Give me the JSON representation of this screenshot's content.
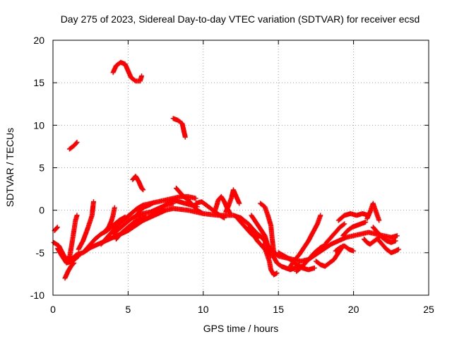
{
  "chart_data": {
    "type": "scatter",
    "title": "Day 275 of 2023, Sidereal Day-to-day VTEC variation (SDTVAR) for receiver ecsd",
    "xlabel": "GPS time / hours",
    "ylabel": "SDTVAR / TECUs",
    "xlim": [
      0,
      25
    ],
    "ylim": [
      -10,
      20
    ],
    "xticks": [
      0,
      5,
      10,
      15,
      20,
      25
    ],
    "yticks": [
      -10,
      -5,
      0,
      5,
      10,
      15,
      20
    ],
    "grid": true,
    "marker": "plus",
    "color": "#ff0000",
    "segments": [
      [
        [
          0.05,
          -3.8
        ],
        [
          0.4,
          -4.2
        ],
        [
          0.8,
          -5.6
        ],
        [
          1.2,
          -5.8
        ],
        [
          1.6,
          -5.2
        ],
        [
          2.0,
          -5.0
        ],
        [
          2.5,
          -4.4
        ],
        [
          3.0,
          -4.0
        ],
        [
          3.5,
          -3.6
        ],
        [
          4.0,
          -3.2
        ],
        [
          4.5,
          -2.8
        ],
        [
          5.0,
          -2.4
        ],
        [
          5.5,
          -1.8
        ],
        [
          6.0,
          -1.2
        ],
        [
          6.5,
          -0.8
        ],
        [
          7.0,
          -0.4
        ],
        [
          7.5,
          0.0
        ],
        [
          8.0,
          0.2
        ],
        [
          8.5,
          0.1
        ],
        [
          9.0,
          0.0
        ],
        [
          9.5,
          -0.2
        ],
        [
          10.0,
          -0.4
        ],
        [
          10.5,
          -0.5
        ],
        [
          11.0,
          -0.6
        ],
        [
          11.5,
          -0.6
        ],
        [
          12.0,
          -0.6
        ],
        [
          12.5,
          -0.9
        ],
        [
          13.0,
          -1.6
        ],
        [
          13.5,
          -2.6
        ],
        [
          14.0,
          -3.4
        ],
        [
          14.5,
          -4.6
        ],
        [
          15.0,
          -5.4
        ],
        [
          15.5,
          -5.6
        ],
        [
          16.0,
          -5.8
        ],
        [
          16.5,
          -6.0
        ],
        [
          17.0,
          -5.8
        ],
        [
          17.5,
          -5.2
        ],
        [
          18.0,
          -4.6
        ],
        [
          18.5,
          -4.0
        ],
        [
          19.0,
          -3.6
        ],
        [
          19.5,
          -3.2
        ],
        [
          20.0,
          -3.0
        ],
        [
          20.5,
          -2.8
        ],
        [
          21.0,
          -2.6
        ],
        [
          21.5,
          -2.8
        ],
        [
          22.0,
          -3.0
        ],
        [
          22.5,
          -3.2
        ],
        [
          22.9,
          -3.0
        ]
      ],
      [
        [
          0.1,
          -2.4
        ],
        [
          0.3,
          -2.0
        ]
      ],
      [
        [
          0.3,
          -4.5
        ],
        [
          0.6,
          -5.4
        ],
        [
          0.9,
          -6.2
        ],
        [
          1.3,
          -6.0
        ],
        [
          1.7,
          -5.4
        ]
      ],
      [
        [
          0.8,
          -8.0
        ],
        [
          1.0,
          -7.2
        ],
        [
          1.2,
          -6.6
        ],
        [
          1.4,
          -6.2
        ]
      ],
      [
        [
          1.1,
          -5.6
        ],
        [
          1.3,
          -3.5
        ],
        [
          1.5,
          -1.2
        ],
        [
          1.6,
          -0.6
        ]
      ],
      [
        [
          1.7,
          -4.6
        ],
        [
          2.0,
          -3.6
        ],
        [
          2.3,
          -2.2
        ],
        [
          2.6,
          -0.6
        ],
        [
          2.7,
          1.0
        ]
      ],
      [
        [
          2.1,
          -4.8
        ],
        [
          2.4,
          -4.2
        ],
        [
          2.8,
          -3.4
        ],
        [
          3.2,
          -2.8
        ],
        [
          3.6,
          -2.4
        ],
        [
          4.0,
          -1.8
        ],
        [
          4.4,
          -1.2
        ],
        [
          4.8,
          -0.8
        ]
      ],
      [
        [
          3.4,
          -2.6
        ],
        [
          3.7,
          -2.0
        ],
        [
          3.9,
          -1.2
        ],
        [
          4.0,
          -0.6
        ],
        [
          4.1,
          0.3
        ]
      ],
      [
        [
          3.2,
          -4.0
        ],
        [
          3.6,
          -3.2
        ],
        [
          4.0,
          -2.4
        ],
        [
          4.4,
          -1.6
        ],
        [
          4.8,
          -1.0
        ],
        [
          5.2,
          -0.4
        ],
        [
          5.6,
          0.2
        ],
        [
          6.0,
          0.6
        ],
        [
          6.5,
          0.8
        ],
        [
          7.0,
          1.0
        ],
        [
          7.5,
          1.2
        ],
        [
          8.0,
          1.4
        ],
        [
          8.5,
          1.6
        ],
        [
          9.0,
          1.6
        ],
        [
          9.5,
          1.4
        ]
      ],
      [
        [
          4.0,
          -2.8
        ],
        [
          4.4,
          -2.2
        ],
        [
          4.8,
          -1.6
        ],
        [
          5.2,
          -1.0
        ],
        [
          5.6,
          -0.6
        ],
        [
          6.0,
          -0.4
        ],
        [
          6.5,
          -0.2
        ],
        [
          7.0,
          0.2
        ],
        [
          7.5,
          0.6
        ],
        [
          8.0,
          0.8
        ]
      ],
      [
        [
          4.2,
          -3.4
        ],
        [
          4.6,
          -2.6
        ],
        [
          5.0,
          -2.0
        ],
        [
          5.4,
          -1.4
        ],
        [
          5.8,
          -1.0
        ],
        [
          6.2,
          -0.8
        ]
      ],
      [
        [
          6.0,
          -1.2
        ],
        [
          6.4,
          -0.8
        ],
        [
          6.8,
          -0.4
        ],
        [
          7.2,
          0.2
        ],
        [
          7.6,
          0.8
        ],
        [
          8.0,
          1.2
        ],
        [
          8.4,
          1.0
        ],
        [
          8.8,
          0.8
        ],
        [
          9.2,
          0.6
        ],
        [
          9.6,
          0.4
        ]
      ],
      [
        [
          5.5,
          -0.8
        ],
        [
          5.8,
          0.0
        ],
        [
          6.1,
          0.4
        ],
        [
          6.4,
          0.6
        ],
        [
          6.7,
          0.9
        ]
      ],
      [
        [
          8.2,
          2.6
        ],
        [
          8.4,
          2.2
        ],
        [
          8.7,
          1.6
        ],
        [
          9.0,
          1.2
        ],
        [
          9.3,
          0.6
        ],
        [
          9.6,
          0.0
        ],
        [
          9.9,
          -0.3
        ]
      ],
      [
        [
          9.5,
          0.8
        ],
        [
          9.9,
          1.0
        ],
        [
          10.2,
          0.6
        ],
        [
          10.5,
          0.2
        ],
        [
          10.8,
          -0.2
        ],
        [
          11.1,
          -0.6
        ],
        [
          11.4,
          -0.9
        ]
      ],
      [
        [
          10.8,
          0.0
        ],
        [
          11.0,
          1.2
        ],
        [
          11.2,
          1.6
        ],
        [
          11.4,
          1.0
        ],
        [
          11.6,
          0.2
        ],
        [
          11.8,
          -0.4
        ]
      ],
      [
        [
          11.5,
          -0.2
        ],
        [
          11.7,
          0.6
        ],
        [
          11.9,
          1.6
        ],
        [
          12.0,
          2.4
        ],
        [
          12.2,
          1.6
        ],
        [
          12.4,
          0.8
        ]
      ],
      [
        [
          12.3,
          -1.0
        ],
        [
          12.6,
          -1.6
        ],
        [
          12.9,
          -2.2
        ],
        [
          13.2,
          -2.8
        ],
        [
          13.5,
          -3.2
        ],
        [
          13.8,
          -3.0
        ]
      ],
      [
        [
          13.0,
          -2.0
        ],
        [
          13.3,
          -2.8
        ],
        [
          13.6,
          -3.6
        ],
        [
          13.9,
          -4.2
        ],
        [
          14.1,
          -4.6
        ]
      ],
      [
        [
          13.2,
          -0.6
        ],
        [
          13.5,
          -1.4
        ],
        [
          13.8,
          -2.2
        ],
        [
          14.1,
          -3.0
        ],
        [
          14.3,
          -4.2
        ],
        [
          14.5,
          -5.4
        ]
      ],
      [
        [
          13.8,
          0.8
        ],
        [
          14.1,
          0.4
        ],
        [
          14.3,
          -0.6
        ],
        [
          14.5,
          -1.8
        ],
        [
          14.6,
          -3.6
        ],
        [
          14.7,
          -5.0
        ]
      ],
      [
        [
          14.0,
          -4.0
        ],
        [
          14.2,
          -5.0
        ],
        [
          14.4,
          -6.0
        ],
        [
          14.5,
          -7.0
        ],
        [
          14.7,
          -7.6
        ],
        [
          14.9,
          -7.4
        ]
      ],
      [
        [
          14.6,
          -5.2
        ],
        [
          14.9,
          -6.2
        ],
        [
          15.2,
          -6.6
        ],
        [
          15.5,
          -6.8
        ],
        [
          15.8,
          -7.0
        ],
        [
          16.1,
          -6.8
        ],
        [
          16.4,
          -6.4
        ]
      ],
      [
        [
          15.0,
          -5.0
        ],
        [
          15.4,
          -5.4
        ],
        [
          15.8,
          -5.8
        ],
        [
          16.2,
          -6.4
        ],
        [
          16.6,
          -6.8
        ],
        [
          17.0,
          -7.0
        ],
        [
          17.4,
          -6.8
        ]
      ],
      [
        [
          15.8,
          -6.6
        ],
        [
          16.1,
          -5.8
        ],
        [
          16.4,
          -5.2
        ],
        [
          16.7,
          -4.4
        ],
        [
          17.0,
          -3.6
        ],
        [
          17.3,
          -2.6
        ],
        [
          17.6,
          -1.6
        ],
        [
          17.8,
          -0.6
        ]
      ],
      [
        [
          16.2,
          -7.2
        ],
        [
          16.6,
          -6.6
        ],
        [
          17.0,
          -5.8
        ],
        [
          17.4,
          -5.0
        ],
        [
          17.8,
          -4.4
        ],
        [
          18.2,
          -4.0
        ]
      ],
      [
        [
          17.5,
          -6.0
        ],
        [
          17.8,
          -6.4
        ],
        [
          18.1,
          -6.6
        ],
        [
          18.4,
          -6.2
        ],
        [
          18.7,
          -5.8
        ],
        [
          19.0,
          -5.0
        ],
        [
          19.3,
          -4.2
        ]
      ],
      [
        [
          18.2,
          -3.8
        ],
        [
          18.5,
          -3.2
        ],
        [
          18.8,
          -2.6
        ],
        [
          19.1,
          -2.0
        ],
        [
          19.4,
          -1.6
        ]
      ],
      [
        [
          18.8,
          -4.8
        ],
        [
          19.1,
          -4.4
        ],
        [
          19.4,
          -4.2
        ],
        [
          19.7,
          -4.6
        ],
        [
          20.0,
          -4.8
        ]
      ],
      [
        [
          19.0,
          -1.2
        ],
        [
          19.4,
          -0.6
        ],
        [
          19.8,
          -0.4
        ],
        [
          20.2,
          -0.6
        ],
        [
          20.6,
          -0.4
        ],
        [
          21.0,
          -0.6
        ]
      ],
      [
        [
          19.3,
          -3.0
        ],
        [
          19.6,
          -2.4
        ],
        [
          19.9,
          -2.0
        ],
        [
          20.2,
          -1.8
        ],
        [
          20.5,
          -1.6
        ],
        [
          20.8,
          -1.4
        ]
      ],
      [
        [
          20.9,
          -1.0
        ],
        [
          21.1,
          -0.2
        ],
        [
          21.3,
          0.8
        ],
        [
          21.5,
          -0.2
        ],
        [
          21.7,
          -1.2
        ]
      ],
      [
        [
          20.7,
          -3.4
        ],
        [
          20.9,
          -3.8
        ],
        [
          21.1,
          -4.0
        ],
        [
          21.4,
          -3.6
        ],
        [
          21.7,
          -3.2
        ]
      ],
      [
        [
          21.3,
          -2.0
        ],
        [
          21.6,
          -2.6
        ],
        [
          21.9,
          -3.2
        ],
        [
          22.2,
          -3.6
        ],
        [
          22.5,
          -3.8
        ],
        [
          22.8,
          -3.6
        ]
      ],
      [
        [
          21.6,
          -3.4
        ],
        [
          21.9,
          -4.0
        ],
        [
          22.2,
          -4.6
        ],
        [
          22.5,
          -5.0
        ],
        [
          22.8,
          -4.8
        ],
        [
          23.0,
          -4.6
        ]
      ],
      [
        [
          4.0,
          16.2
        ],
        [
          4.2,
          17.0
        ],
        [
          4.5,
          17.4
        ],
        [
          4.8,
          17.2
        ],
        [
          5.0,
          16.4
        ],
        [
          5.2,
          15.6
        ],
        [
          5.5,
          15.2
        ],
        [
          5.8,
          15.2
        ],
        [
          5.9,
          15.8
        ]
      ],
      [
        [
          1.1,
          7.2
        ],
        [
          1.4,
          7.6
        ],
        [
          1.6,
          8.0
        ]
      ],
      [
        [
          8.0,
          10.8
        ],
        [
          8.3,
          10.6
        ],
        [
          8.6,
          10.2
        ],
        [
          8.7,
          9.4
        ],
        [
          8.8,
          8.6
        ]
      ],
      [
        [
          5.3,
          3.6
        ],
        [
          5.5,
          4.0
        ],
        [
          5.7,
          3.4
        ],
        [
          5.9,
          2.6
        ],
        [
          6.0,
          2.4
        ]
      ]
    ]
  }
}
